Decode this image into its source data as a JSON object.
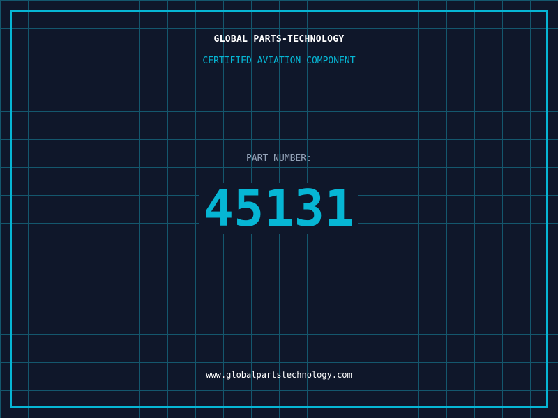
{
  "header": {
    "title": "GLOBAL PARTS-TECHNOLOGY",
    "subtitle": "CERTIFIED AVIATION COMPONENT"
  },
  "part": {
    "label": "PART NUMBER:",
    "number": "45131"
  },
  "footer": {
    "url": "www.globalpartstechnology.com"
  },
  "colors": {
    "background": "#0f172a",
    "grid": "#155e75",
    "accent": "#06b6d4",
    "label": "#94a3b8"
  }
}
